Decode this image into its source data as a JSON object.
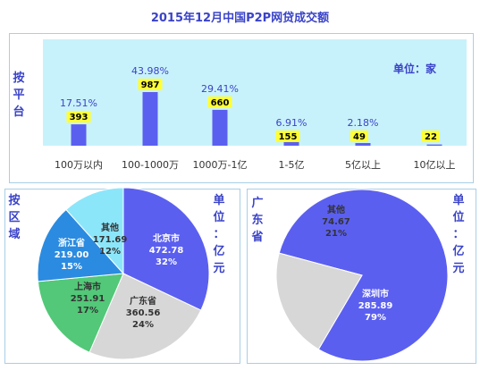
{
  "title": "2015年12月中国P2P网贷成交额",
  "top": {
    "side_label": "按平台",
    "unit": "单位：家",
    "bg": "#c8f2fb",
    "bar_color": "#5b5ff0",
    "label_bg": "#ffff33"
  },
  "left": {
    "side_label": "按区域",
    "unit": "单位：亿元"
  },
  "right": {
    "side_label": "广东省",
    "unit": "单位：亿元"
  },
  "chart_data": [
    {
      "type": "bar",
      "categories": [
        "100万以内",
        "100-1000万",
        "1000万-1亿",
        "1-5亿",
        "5亿以上",
        "10亿以上"
      ],
      "values": [
        393,
        987,
        660,
        155,
        49,
        22
      ],
      "percent_labels": [
        "17.51%",
        "43.98%",
        "29.41%",
        "6.91%",
        "2.18%",
        ""
      ],
      "unit": "单位：家",
      "legend": "none",
      "grid": false
    },
    {
      "type": "pie",
      "slices": [
        {
          "label": "北京市",
          "value": "472.78",
          "pct": "32%",
          "num": 472.78,
          "color": "#5b5ff0"
        },
        {
          "label": "广东省",
          "value": "360.56",
          "pct": "24%",
          "num": 360.56,
          "color": "#d7d7d7"
        },
        {
          "label": "上海市",
          "value": "251.91",
          "pct": "17%",
          "num": 251.91,
          "color": "#52c878"
        },
        {
          "label": "浙江省",
          "value": "219.00",
          "pct": "15%",
          "num": 219.0,
          "color": "#2b8be0"
        },
        {
          "label": "其他",
          "value": "171.69",
          "pct": "12%",
          "num": 171.69,
          "color": "#8ce6fa"
        }
      ],
      "unit": "单位：亿元"
    },
    {
      "type": "pie",
      "slices": [
        {
          "label": "深圳市",
          "value": "285.89",
          "pct": "79%",
          "num": 285.89,
          "color": "#5b5ff0"
        },
        {
          "label": "其他",
          "value": "74.67",
          "pct": "21%",
          "num": 74.67,
          "color": "#d7d7d7"
        }
      ],
      "unit": "单位：亿元"
    }
  ]
}
